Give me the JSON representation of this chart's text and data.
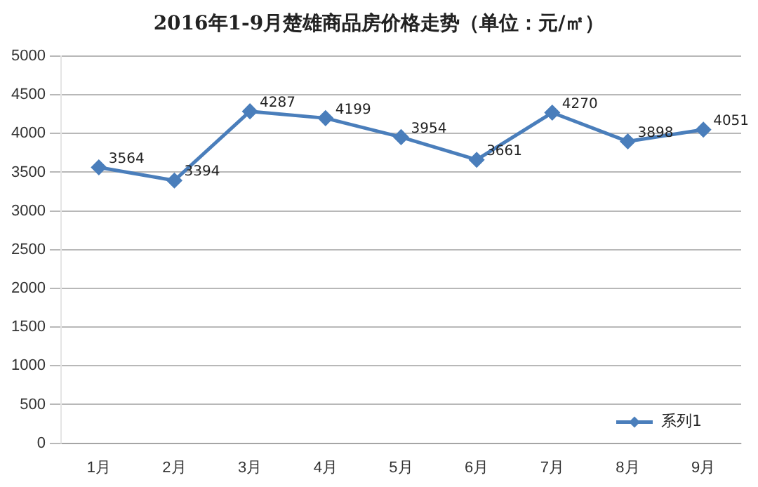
{
  "chart_data": {
    "type": "line",
    "title": "2016年1-9月楚雄商品房价格走势（单位：元/㎡）",
    "categories": [
      "1月",
      "2月",
      "3月",
      "4月",
      "5月",
      "6月",
      "7月",
      "8月",
      "9月"
    ],
    "series": [
      {
        "name": "系列1",
        "color": "#4a7ebb",
        "values": [
          3564,
          3394,
          4287,
          4199,
          3954,
          3661,
          4270,
          3898,
          4051
        ]
      }
    ],
    "ylim": [
      0,
      5000
    ],
    "yticks": [
      0,
      500,
      1000,
      1500,
      2000,
      2500,
      3000,
      3500,
      4000,
      4500,
      5000
    ],
    "grid": "y",
    "legend": "bottom right",
    "marker": "diamond",
    "line_style": "solid",
    "data_labels": true
  }
}
